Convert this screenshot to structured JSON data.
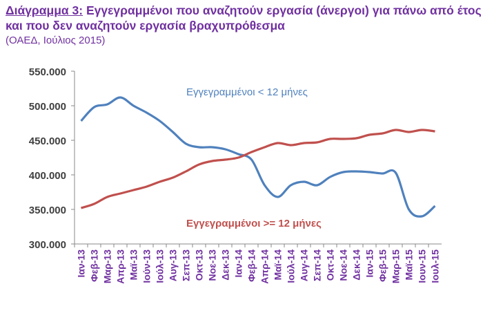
{
  "chart_data": {
    "type": "line",
    "title_prefix": "Διάγραμμα 3:",
    "title": "Εγγεγραμμένοι που αναζητούν εργασία (άνεργοι) για πάνω από έτος και που δεν αναζητούν εργασία βραχυπρόθεσμα",
    "subtitle": "(ΟΑΕΔ, Ιούλιος 2015)",
    "categories": [
      "Ιαν-13",
      "Φεβ-13",
      "Μαρ-13",
      "Απρ-13",
      "Μαϊ-13",
      "Ιούν-13",
      "Ιούλ-13",
      "Αυγ-13",
      "Σεπ-13",
      "Οκτ-13",
      "Νοε-13",
      "Δεκ-13",
      "Ιαν-14",
      "Φεβ-14",
      "Απρ-14",
      "Μαϊ-14",
      "Ιούλ-14",
      "Αυγ-14",
      "Σεπ-14",
      "Οκτ-14",
      "Νοε-14",
      "Δεκ-14",
      "Ιαν-15",
      "Φεβ-15",
      "Μαρ-15",
      "Μαϊ-15",
      "Ιουν-15",
      "Ιουλ-15"
    ],
    "series": [
      {
        "name": "Εγγεγραμμένοι < 12 μήνες",
        "color": "#4f81bd",
        "values": [
          478000,
          498000,
          502000,
          512000,
          500000,
          490000,
          478000,
          462000,
          445000,
          440000,
          440000,
          437000,
          430000,
          422000,
          385000,
          368000,
          385000,
          390000,
          385000,
          397000,
          404000,
          405000,
          404000,
          402000,
          403000,
          350000,
          340000,
          355000
        ]
      },
      {
        "name": "Εγγεγραμμένοι >= 12 μήνες",
        "color": "#c0504d",
        "values": [
          352000,
          358000,
          368000,
          373000,
          378000,
          383000,
          390000,
          396000,
          405000,
          415000,
          420000,
          422000,
          425000,
          433000,
          440000,
          446000,
          443000,
          446000,
          447000,
          452000,
          452000,
          453000,
          458000,
          460000,
          465000,
          462000,
          465000,
          463000
        ]
      }
    ],
    "ylim": [
      300000,
      550000
    ],
    "yticks": [
      {
        "value": 300000,
        "label": "300.000"
      },
      {
        "value": 350000,
        "label": "350.000"
      },
      {
        "value": 400000,
        "label": "400.000"
      },
      {
        "value": 450000,
        "label": "450.000"
      },
      {
        "value": 500000,
        "label": "500.000"
      },
      {
        "value": 550000,
        "label": "550.000"
      }
    ],
    "grid": false
  }
}
